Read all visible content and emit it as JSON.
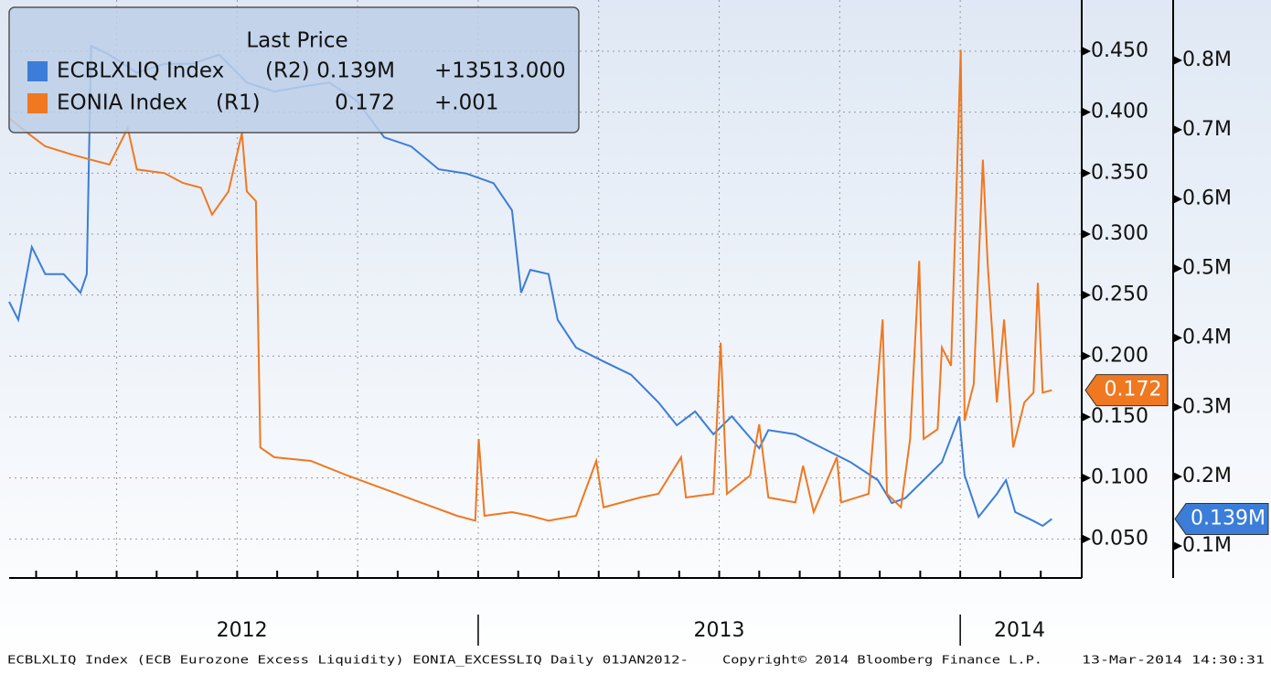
{
  "chart_data": {
    "type": "line",
    "legend_title": "Last Price",
    "xlim": [
      2012.027,
      2014.252
    ],
    "xticks": [
      2012.083,
      2012.167,
      2012.25,
      2012.333,
      2012.417,
      2012.5,
      2012.583,
      2012.667,
      2012.75,
      2012.833,
      2012.917,
      2013,
      2013.083,
      2013.167,
      2013.25,
      2013.333,
      2013.417,
      2013.5,
      2013.583,
      2013.667,
      2013.75,
      2013.833,
      2013.917,
      2014,
      2014.083,
      2014.167
    ],
    "year_ticks": [
      2013,
      2014
    ],
    "year_labels": [
      {
        "value": 2012.51,
        "label": "2012"
      },
      {
        "value": 2013.5,
        "label": "2013"
      },
      {
        "value": 2014.123,
        "label": "2014"
      }
    ],
    "ylim": [
      0.018,
      0.492
    ],
    "yticks": [
      {
        "value": 0.05,
        "label": "0.050"
      },
      {
        "value": 0.1,
        "label": "0.100"
      },
      {
        "value": 0.15,
        "label": "0.150"
      },
      {
        "value": 0.2,
        "label": "0.200"
      },
      {
        "value": 0.25,
        "label": "0.250"
      },
      {
        "value": 0.3,
        "label": "0.300"
      },
      {
        "value": 0.35,
        "label": "0.350"
      },
      {
        "value": 0.4,
        "label": "0.400"
      },
      {
        "value": 0.45,
        "label": "0.450"
      }
    ],
    "y2lim": [
      0.0539,
      0.887
    ],
    "y2ticks": [
      {
        "value": 0.1,
        "label": "0.1M"
      },
      {
        "value": 0.2,
        "label": "0.2M"
      },
      {
        "value": 0.3,
        "label": "0.3M"
      },
      {
        "value": 0.4,
        "label": "0.4M"
      },
      {
        "value": 0.5,
        "label": "0.5M"
      },
      {
        "value": 0.6,
        "label": "0.6M"
      },
      {
        "value": 0.7,
        "label": "0.7M"
      },
      {
        "value": 0.8,
        "label": "0.8M"
      }
    ],
    "grid": true,
    "series": [
      {
        "name": "ECBLXLIQ Index",
        "axis": "y2",
        "axis_label": "(R2)",
        "color": "#3b7dd8",
        "last_label": "0.139M",
        "change": "+13513.000",
        "x": [
          2012.027,
          2012.046,
          2012.074,
          2012.102,
          2012.14,
          2012.175,
          2012.188,
          2012.197,
          2012.235,
          2012.292,
          2012.349,
          2012.406,
          2012.463,
          2012.52,
          2012.577,
          2012.634,
          2012.691,
          2012.748,
          2012.805,
          2012.861,
          2012.918,
          2012.975,
          2013.032,
          2013.07,
          2013.089,
          2013.108,
          2013.146,
          2013.165,
          2013.203,
          2013.26,
          2013.317,
          2013.374,
          2013.412,
          2013.45,
          2013.488,
          2013.526,
          2013.583,
          2013.602,
          2013.658,
          2013.715,
          2013.772,
          2013.829,
          2013.858,
          2013.886,
          2013.924,
          2013.962,
          2013.998,
          2014.009,
          2014.038,
          2014.076,
          2014.095,
          2014.114,
          2014.152,
          2014.171,
          2014.19
        ],
        "values": [
          0.452,
          0.426,
          0.531,
          0.492,
          0.492,
          0.465,
          0.492,
          0.821,
          0.808,
          0.782,
          0.795,
          0.795,
          0.808,
          0.768,
          0.755,
          0.762,
          0.768,
          0.742,
          0.689,
          0.676,
          0.643,
          0.637,
          0.623,
          0.584,
          0.465,
          0.498,
          0.492,
          0.426,
          0.386,
          0.366,
          0.347,
          0.307,
          0.274,
          0.294,
          0.261,
          0.287,
          0.241,
          0.267,
          0.261,
          0.241,
          0.221,
          0.195,
          0.162,
          0.169,
          0.195,
          0.221,
          0.287,
          0.202,
          0.142,
          0.175,
          0.195,
          0.149,
          0.136,
          0.129,
          0.139
        ]
      },
      {
        "name": "EONIA Index",
        "axis": "y",
        "axis_label": "(R1)",
        "color": "#f07820",
        "last_label": "0.172",
        "change": "+.001",
        "x": [
          2012.027,
          2012.065,
          2012.102,
          2012.159,
          2012.197,
          2012.235,
          2012.273,
          2012.292,
          2012.349,
          2012.387,
          2012.425,
          2012.448,
          2012.482,
          2012.51,
          2012.52,
          2012.539,
          2012.548,
          2012.577,
          2012.653,
          2012.729,
          2012.805,
          2012.88,
          2012.956,
          2012.994,
          2013.001,
          2013.013,
          2013.07,
          2013.108,
          2013.146,
          2013.203,
          2013.245,
          2013.26,
          2013.336,
          2013.374,
          2013.421,
          2013.431,
          2013.488,
          2013.503,
          2013.516,
          2013.564,
          2013.583,
          2013.602,
          2013.658,
          2013.674,
          2013.696,
          2013.744,
          2013.753,
          2013.81,
          2013.839,
          2013.848,
          2013.877,
          2013.896,
          2013.915,
          2013.924,
          2013.953,
          2013.962,
          2013.981,
          2014.001,
          2014.009,
          2014.028,
          2014.047,
          2014.057,
          2014.076,
          2014.091,
          2014.11,
          2014.133,
          2014.152,
          2014.161,
          2014.171,
          2014.19
        ],
        "values": [
          0.395,
          0.383,
          0.372,
          0.365,
          0.361,
          0.357,
          0.387,
          0.353,
          0.35,
          0.342,
          0.338,
          0.316,
          0.335,
          0.383,
          0.335,
          0.327,
          0.125,
          0.117,
          0.114,
          0.102,
          0.091,
          0.08,
          0.069,
          0.065,
          0.132,
          0.069,
          0.072,
          0.069,
          0.065,
          0.069,
          0.114,
          0.076,
          0.084,
          0.087,
          0.117,
          0.084,
          0.087,
          0.211,
          0.087,
          0.102,
          0.144,
          0.084,
          0.08,
          0.11,
          0.072,
          0.117,
          0.08,
          0.087,
          0.23,
          0.087,
          0.076,
          0.132,
          0.278,
          0.132,
          0.14,
          0.207,
          0.192,
          0.451,
          0.147,
          0.177,
          0.361,
          0.275,
          0.162,
          0.23,
          0.125,
          0.162,
          0.17,
          0.26,
          0.17,
          0.172
        ]
      }
    ],
    "footer": [
      "ECBLXLIQ Index (ECB Eurozone Excess Liquidity) EONIA_EXCESSLIQ  Daily 01JAN2012-",
      "Copyright© 2014 Bloomberg Finance L.P.",
      "13-Mar-2014 14:30:31"
    ]
  }
}
